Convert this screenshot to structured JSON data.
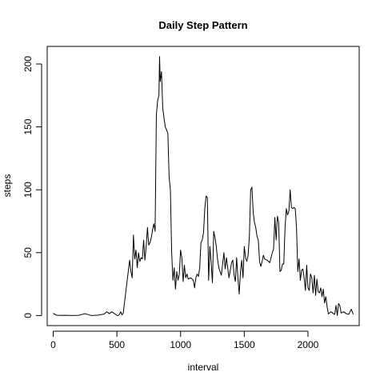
{
  "chart_data": {
    "type": "line",
    "title": "Daily Step Pattern",
    "xlabel": "interval",
    "ylabel": "steps",
    "xlim": [
      -47,
      2402
    ],
    "ylim": [
      -8,
      214
    ],
    "xticks": [
      0,
      500,
      1000,
      1500,
      2000
    ],
    "yticks": [
      0,
      50,
      100,
      150,
      200
    ],
    "xtick_labels": [
      "0",
      "500",
      "1000",
      "1500",
      "2000"
    ],
    "ytick_labels": [
      "0",
      "50",
      "100",
      "150",
      "200"
    ],
    "grid": false,
    "series": [
      {
        "name": "steps",
        "color": "#000000",
        "x": [
          0,
          25,
          50,
          100,
          150,
          200,
          250,
          300,
          350,
          400,
          420,
          440,
          460,
          500,
          510,
          520,
          530,
          540,
          550,
          600,
          610,
          620,
          630,
          640,
          650,
          660,
          670,
          680,
          690,
          700,
          710,
          720,
          730,
          740,
          750,
          760,
          770,
          780,
          790,
          800,
          810,
          820,
          830,
          835,
          840,
          850,
          860,
          870,
          880,
          900,
          910,
          920,
          930,
          940,
          950,
          960,
          970,
          980,
          990,
          1000,
          1010,
          1020,
          1030,
          1040,
          1050,
          1060,
          1080,
          1100,
          1110,
          1120,
          1130,
          1140,
          1150,
          1160,
          1170,
          1180,
          1190,
          1200,
          1210,
          1220,
          1230,
          1240,
          1250,
          1260,
          1270,
          1280,
          1290,
          1300,
          1320,
          1340,
          1350,
          1360,
          1380,
          1400,
          1410,
          1420,
          1430,
          1440,
          1450,
          1460,
          1470,
          1480,
          1490,
          1500,
          1510,
          1520,
          1530,
          1540,
          1550,
          1560,
          1570,
          1580,
          1590,
          1600,
          1610,
          1620,
          1630,
          1640,
          1650,
          1660,
          1680,
          1700,
          1710,
          1720,
          1730,
          1740,
          1750,
          1760,
          1770,
          1780,
          1790,
          1800,
          1810,
          1820,
          1830,
          1840,
          1850,
          1860,
          1870,
          1880,
          1890,
          1900,
          1910,
          1920,
          1930,
          1940,
          1950,
          1960,
          1970,
          1980,
          1990,
          2000,
          2010,
          2020,
          2030,
          2040,
          2050,
          2060,
          2070,
          2080,
          2090,
          2100,
          2110,
          2120,
          2130,
          2140,
          2150,
          2160,
          2180,
          2200,
          2210,
          2220,
          2230,
          2240,
          2250,
          2260,
          2280,
          2300,
          2320,
          2340,
          2355
        ],
        "y": [
          1.7,
          0.3,
          0.1,
          0.2,
          0,
          0.2,
          1.5,
          0,
          0.3,
          1.2,
          3,
          1.5,
          3,
          0.2,
          0,
          1,
          3,
          0.5,
          2,
          44,
          35,
          30,
          64,
          45,
          52,
          38,
          50,
          43,
          46,
          45,
          60,
          44,
          55,
          70,
          56,
          58,
          62,
          68,
          73,
          67,
          160,
          171,
          175,
          206,
          186,
          194,
          165,
          157,
          150,
          145,
          110,
          100,
          50,
          28,
          38,
          21,
          35,
          28,
          33,
          52,
          46,
          27,
          40,
          30,
          33,
          29,
          30,
          28,
          22,
          30,
          33,
          31,
          38,
          58,
          60,
          66,
          85,
          95,
          94,
          28,
          55,
          42,
          26,
          67,
          62,
          55,
          45,
          38,
          32,
          50,
          37,
          46,
          30,
          42,
          44,
          32,
          27,
          46,
          30,
          17,
          35,
          44,
          30,
          55,
          46,
          43,
          48,
          63,
          100,
          102,
          82,
          74,
          70,
          63,
          60,
          43,
          39,
          43,
          48,
          45,
          44,
          42,
          46,
          50,
          53,
          78,
          60,
          79,
          74,
          35,
          36,
          41,
          41,
          70,
          85,
          80,
          83,
          100,
          86,
          85,
          86,
          85,
          70,
          35,
          45,
          28,
          36,
          37,
          30,
          20,
          40,
          22,
          20,
          33,
          30,
          18,
          32,
          16,
          29,
          19,
          18,
          22,
          15,
          21,
          10,
          15,
          7,
          1.3,
          3,
          1.5,
          1,
          8,
          0,
          9.5,
          8,
          2,
          3,
          1.5,
          1,
          5,
          1
        ]
      }
    ]
  }
}
